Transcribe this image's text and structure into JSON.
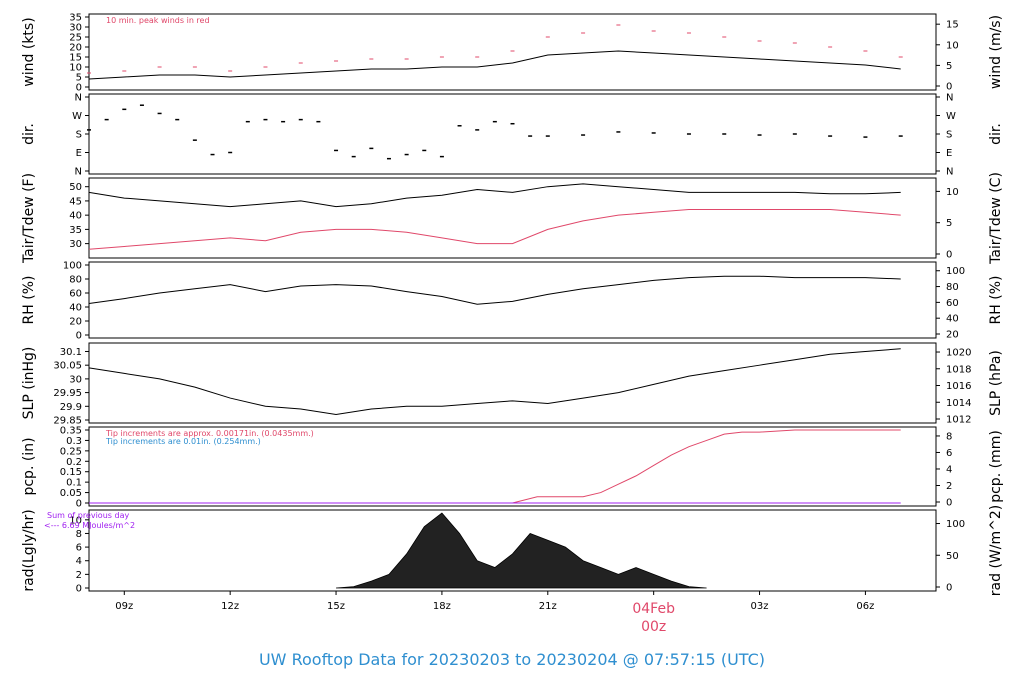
{
  "title": "UW Rooftop Data for 20230203  to  20230204 @ 07:57:15  (UTC)",
  "colors": {
    "title": "#2f8fd0",
    "red": "#e0486a",
    "blue": "#2f8fd0",
    "purple": "#a020f0",
    "black": "#000000"
  },
  "chart_data": [
    {
      "type": "line",
      "ylabel": "wind (kts)",
      "ylabel_right": "wind (m/s)",
      "ylim": [
        0,
        35
      ],
      "yticks": [
        0,
        5,
        10,
        15,
        20,
        25,
        30,
        35
      ],
      "right_ticks": [
        0,
        5,
        10,
        15
      ],
      "annotation": "10 min. peak winds in red",
      "series": [
        {
          "name": "wind",
          "color": "#000000",
          "x": [
            8,
            9,
            10,
            11,
            12,
            13,
            14,
            15,
            16,
            17,
            18,
            19,
            20,
            21,
            22,
            23,
            24,
            25,
            26,
            27,
            28,
            29,
            30,
            31
          ],
          "y": [
            4,
            5,
            6,
            6,
            5,
            6,
            7,
            8,
            9,
            9,
            10,
            10,
            12,
            16,
            17,
            18,
            17,
            16,
            15,
            14,
            13,
            12,
            11,
            9
          ]
        },
        {
          "name": "10 min. peak winds",
          "color": "#e0486a",
          "x": [
            8,
            9,
            10,
            11,
            12,
            13,
            14,
            15,
            16,
            17,
            18,
            19,
            20,
            21,
            22,
            23,
            24,
            25,
            26,
            27,
            28,
            29,
            30,
            31
          ],
          "y": [
            7,
            8,
            10,
            10,
            8,
            10,
            12,
            13,
            14,
            14,
            15,
            15,
            18,
            25,
            27,
            31,
            28,
            27,
            25,
            23,
            22,
            20,
            18,
            15
          ]
        }
      ]
    },
    {
      "type": "scatter",
      "ylabel": "dir.",
      "ylabel_right": "dir.",
      "ytick_labels": [
        "N",
        "E",
        "S",
        "W",
        "N"
      ],
      "ylim": [
        0,
        360
      ],
      "series": [
        {
          "name": "direction",
          "color": "#000000",
          "x": [
            8,
            8.5,
            9,
            9.5,
            10,
            10.5,
            11,
            11.5,
            12,
            12.5,
            13,
            13.5,
            14,
            14.5,
            15,
            15.5,
            16,
            16.5,
            17,
            17.5,
            18,
            18.5,
            19,
            19.5,
            20,
            20.5,
            21,
            22,
            23,
            24,
            25,
            26,
            27,
            28,
            29,
            30,
            31
          ],
          "y": [
            200,
            250,
            300,
            320,
            280,
            250,
            150,
            80,
            90,
            240,
            250,
            240,
            250,
            240,
            100,
            70,
            110,
            60,
            80,
            100,
            70,
            220,
            200,
            240,
            230,
            170,
            170,
            175,
            190,
            185,
            180,
            180,
            175,
            180,
            170,
            165,
            170
          ]
        }
      ]
    },
    {
      "type": "line",
      "ylabel": "Tair/Tdew (F)",
      "ylabel_right": "Tair/Tdew (C)",
      "ylim": [
        26,
        52
      ],
      "yticks": [
        30,
        35,
        40,
        45,
        50
      ],
      "right_ticks": [
        0,
        5,
        10
      ],
      "series": [
        {
          "name": "Tair",
          "color": "#000000",
          "x": [
            8,
            9,
            10,
            11,
            12,
            13,
            14,
            15,
            16,
            17,
            18,
            19,
            20,
            21,
            22,
            23,
            24,
            25,
            26,
            27,
            28,
            29,
            30,
            31
          ],
          "y": [
            48,
            46,
            45,
            44,
            43,
            44,
            45,
            43,
            44,
            46,
            47,
            49,
            48,
            50,
            51,
            50,
            49,
            48,
            48,
            48,
            48,
            47.5,
            47.5,
            48
          ]
        },
        {
          "name": "Tdew",
          "color": "#e0486a",
          "x": [
            8,
            9,
            10,
            11,
            12,
            13,
            14,
            15,
            16,
            17,
            18,
            19,
            20,
            21,
            22,
            23,
            24,
            25,
            26,
            27,
            28,
            29,
            30,
            31
          ],
          "y": [
            28,
            29,
            30,
            31,
            32,
            31,
            34,
            35,
            35,
            34,
            32,
            30,
            30,
            35,
            38,
            40,
            41,
            42,
            42,
            42,
            42,
            42,
            41,
            40
          ]
        }
      ]
    },
    {
      "type": "line",
      "ylabel": "RH (%)",
      "ylabel_right": "RH (%)",
      "ylim": [
        0,
        100
      ],
      "yticks": [
        0,
        20,
        40,
        60,
        80,
        100
      ],
      "right_ticks": [
        20,
        40,
        60,
        80,
        100
      ],
      "series": [
        {
          "name": "RH",
          "color": "#000000",
          "x": [
            8,
            9,
            10,
            11,
            12,
            13,
            14,
            15,
            16,
            17,
            18,
            19,
            20,
            21,
            22,
            23,
            24,
            25,
            26,
            27,
            28,
            29,
            30,
            31
          ],
          "y": [
            45,
            52,
            60,
            66,
            72,
            62,
            70,
            72,
            70,
            62,
            55,
            44,
            48,
            58,
            66,
            72,
            78,
            82,
            84,
            84,
            82,
            82,
            82,
            80
          ]
        }
      ]
    },
    {
      "type": "line",
      "ylabel": "SLP (inHg)",
      "ylabel_right": "SLP (hPa)",
      "ylim": [
        29.85,
        30.12
      ],
      "yticks": [
        29.85,
        29.9,
        29.95,
        30.0,
        30.05,
        30.1
      ],
      "right_ticks": [
        1012,
        1014,
        1016,
        1018,
        1020
      ],
      "series": [
        {
          "name": "SLP",
          "color": "#000000",
          "x": [
            8,
            9,
            10,
            11,
            12,
            13,
            14,
            15,
            16,
            17,
            18,
            19,
            20,
            21,
            22,
            23,
            24,
            25,
            26,
            27,
            28,
            29,
            30,
            31
          ],
          "y": [
            30.04,
            30.02,
            30.0,
            29.97,
            29.93,
            29.9,
            29.89,
            29.87,
            29.89,
            29.9,
            29.9,
            29.91,
            29.92,
            29.91,
            29.93,
            29.95,
            29.98,
            30.01,
            30.03,
            30.05,
            30.07,
            30.09,
            30.1,
            30.11
          ]
        }
      ]
    },
    {
      "type": "line",
      "ylabel": "pcp. (in)",
      "ylabel_right": "pcp. (mm)",
      "ylim": [
        0,
        0.35
      ],
      "yticks": [
        0,
        0.05,
        0.1,
        0.15,
        0.2,
        0.25,
        0.3,
        0.35
      ],
      "right_ticks": [
        0,
        2,
        4,
        6,
        8
      ],
      "annotations": [
        "Tip increments are approx. 0.00171in. (0.0435mm.)",
        "Tip increments are 0.01in. (0.254mm.)"
      ],
      "series": [
        {
          "name": "precip (approx. 0.00171in. tips)",
          "color": "#e0486a",
          "x": [
            8,
            20,
            20.7,
            21,
            22,
            22.5,
            23,
            23.5,
            24,
            24.5,
            25,
            25.5,
            26,
            26.5,
            27,
            28,
            29,
            30,
            31
          ],
          "y": [
            0,
            0,
            0.03,
            0.03,
            0.03,
            0.05,
            0.09,
            0.13,
            0.18,
            0.23,
            0.27,
            0.3,
            0.33,
            0.34,
            0.34,
            0.35,
            0.35,
            0.35,
            0.35
          ]
        },
        {
          "name": "precip (0.01in. tips)",
          "color": "#a020f0",
          "x": [
            8,
            31
          ],
          "y": [
            0,
            0
          ]
        }
      ]
    },
    {
      "type": "area",
      "ylabel": "rad(Lgly/hr)",
      "ylabel_right": "rad (W/m^2)",
      "ylim": [
        0,
        11
      ],
      "yticks": [
        0,
        2,
        4,
        6,
        8,
        10
      ],
      "right_ticks": [
        0,
        50,
        100
      ],
      "annotations": [
        "Sum of previous day",
        "<--- 6.69 MJoules/m^2"
      ],
      "series": [
        {
          "name": "radiation",
          "color": "#000000",
          "x": [
            15,
            15.5,
            16,
            16.5,
            17,
            17.5,
            18,
            18.5,
            19,
            19.5,
            20,
            20.5,
            21,
            21.5,
            22,
            22.5,
            23,
            23.5,
            24,
            24.5,
            25,
            25.5
          ],
          "y": [
            0,
            0.2,
            1,
            2,
            5,
            9,
            11,
            8,
            4,
            3,
            5,
            8,
            7,
            6,
            4,
            3,
            2,
            3,
            2,
            1,
            0.2,
            0
          ]
        }
      ]
    }
  ],
  "xaxis": {
    "xlim": [
      8,
      32
    ],
    "tick_positions": [
      9,
      12,
      15,
      18,
      21,
      24,
      27,
      30
    ],
    "tick_labels": [
      "09z",
      "12z",
      "15z",
      "18z",
      "21z",
      "",
      "03z",
      "06z"
    ],
    "date_label": "04Feb",
    "date_sublabel": "00z"
  }
}
